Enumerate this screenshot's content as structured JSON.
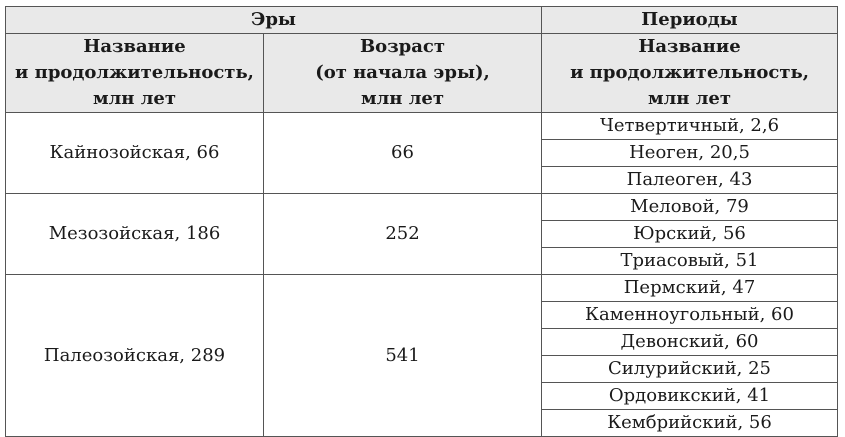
{
  "headers": {
    "eras": "Эры",
    "periods": "Периоды",
    "era_name": [
      "Название",
      "и продолжительность,",
      "млн лет"
    ],
    "era_age": [
      "Возраст",
      "(от начала эры),",
      "млн лет"
    ],
    "period_name": [
      "Название",
      "и продолжительность,",
      "млн лет"
    ]
  },
  "eras": [
    {
      "name": "Кайнозойская, 66",
      "age": "66",
      "periods": [
        "Четвертичный, 2,6",
        "Неоген, 20,5",
        "Палеоген, 43"
      ]
    },
    {
      "name": "Мезозойская, 186",
      "age": "252",
      "periods": [
        "Меловой, 79",
        "Юрский, 56",
        "Триасовый, 51"
      ]
    },
    {
      "name": "Палеозойская, 289",
      "age": "541",
      "periods": [
        "Пермский, 47",
        "Каменноугольный, 60",
        "Девонский, 60",
        "Силурийский, 25",
        "Ордовикский, 41",
        "Кембрийский, 56"
      ]
    }
  ]
}
